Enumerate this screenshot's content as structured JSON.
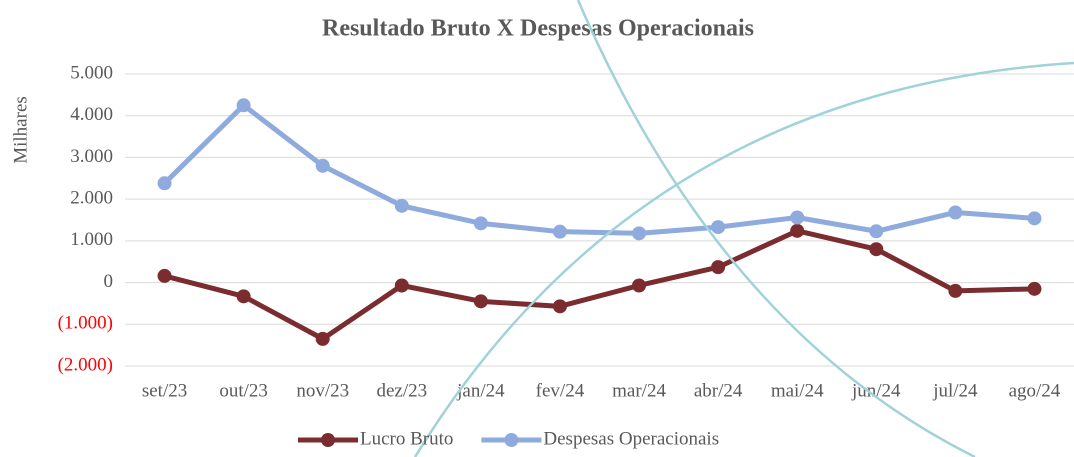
{
  "chart_data": {
    "type": "line",
    "title": "Resultado Bruto X Despesas Operacionais",
    "y_label": "Milhares",
    "categories": [
      "set/23",
      "out/23",
      "nov/23",
      "dez/23",
      "jan/24",
      "fev/24",
      "mar/24",
      "abr/24",
      "mai/24",
      "jun/24",
      "jul/24",
      "ago/24"
    ],
    "series": [
      {
        "name": "Lucro Bruto",
        "color": "#7b2c2f",
        "values": [
          160,
          -330,
          -1350,
          -70,
          -450,
          -570,
          -70,
          370,
          1240,
          800,
          -200,
          -150
        ]
      },
      {
        "name": "Despesas Operacionais",
        "color": "#8faadc",
        "values": [
          2380,
          4250,
          2800,
          1840,
          1420,
          1220,
          1180,
          1330,
          1560,
          1230,
          1680,
          1540
        ]
      }
    ],
    "ylim": [
      -2000,
      5000
    ],
    "yticks": [
      {
        "value": -2000,
        "label": "(2.000)"
      },
      {
        "value": -1000,
        "label": "(1.000)"
      },
      0,
      {
        "value": 1000,
        "label": "1.000"
      },
      {
        "value": 2000,
        "label": "2.000"
      },
      {
        "value": 3000,
        "label": "3.000"
      },
      {
        "value": 4000,
        "label": "4.000"
      },
      {
        "value": 5000,
        "label": "5.000"
      }
    ],
    "negative_tick_color": "#ff0000",
    "grid": true,
    "legend": "bottom"
  }
}
